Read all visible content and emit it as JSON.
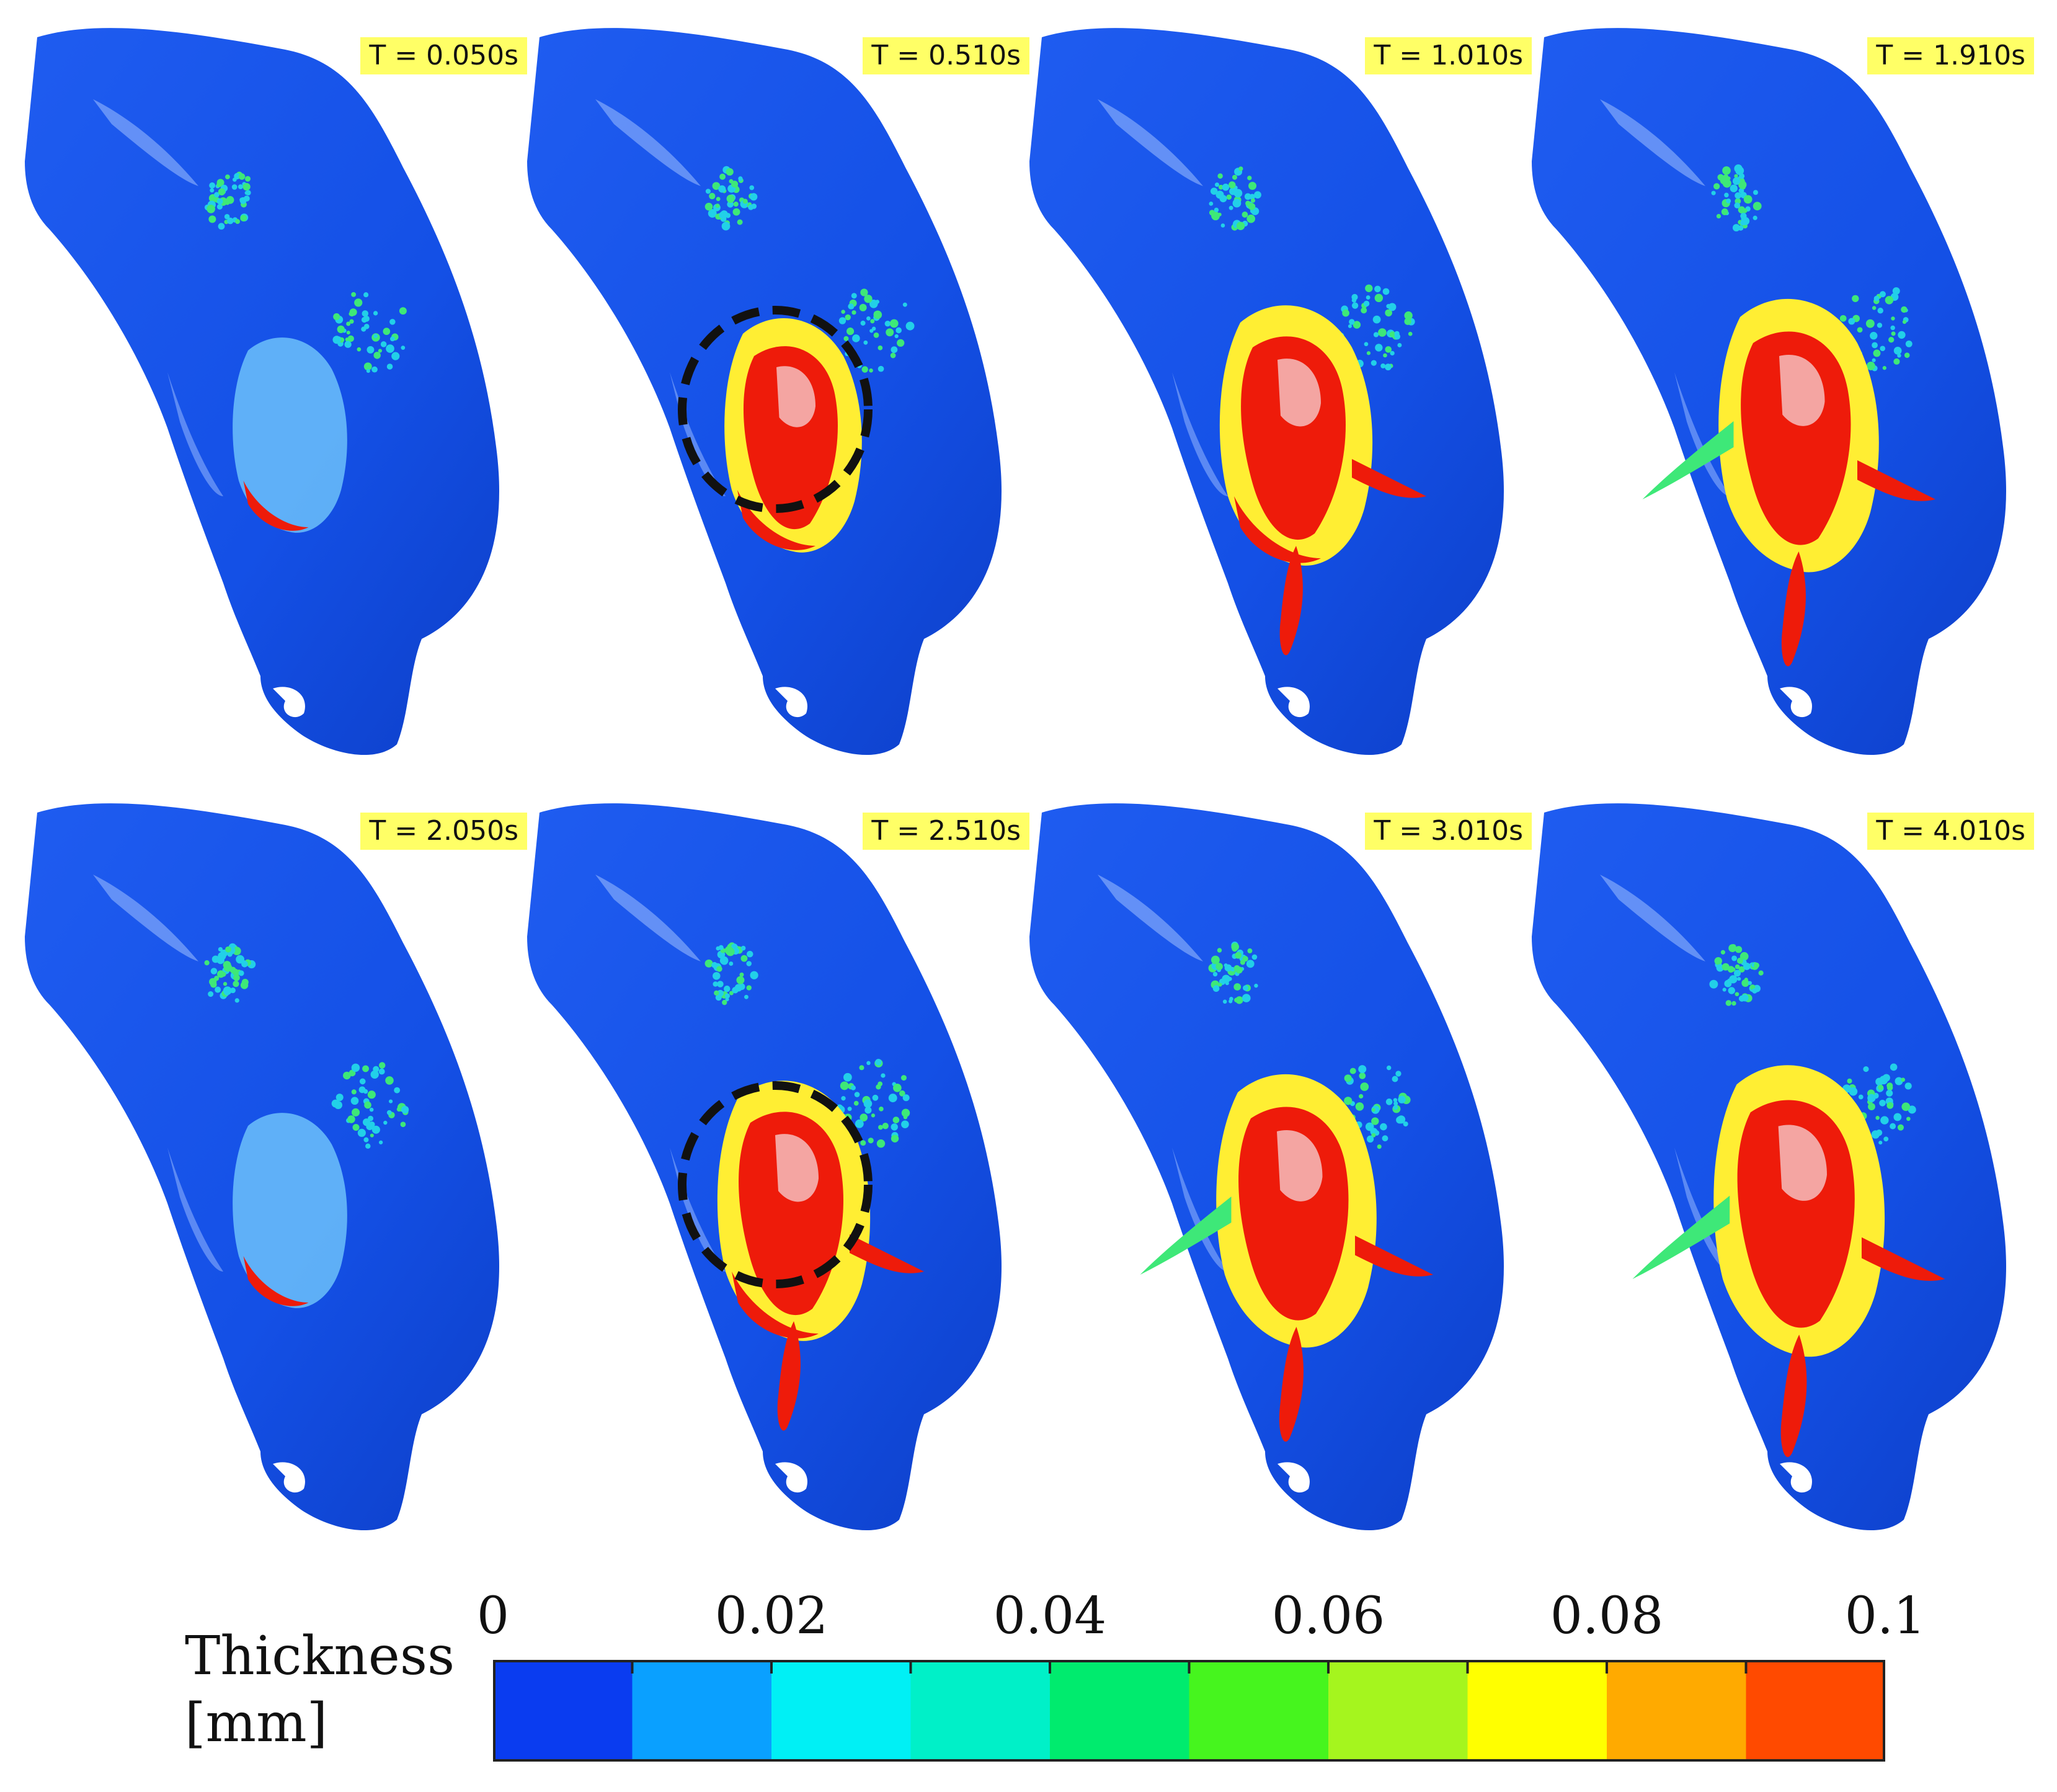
{
  "panels": [
    {
      "label": "T = 0.050s",
      "stage": 0,
      "ring": false
    },
    {
      "label": "T = 0.510s",
      "stage": 1,
      "ring": true
    },
    {
      "label": "T = 1.010s",
      "stage": 2,
      "ring": false
    },
    {
      "label": "T = 1.910s",
      "stage": 3,
      "ring": false
    },
    {
      "label": "T = 2.050s",
      "stage": 0,
      "ring": false
    },
    {
      "label": "T = 2.510s",
      "stage": 2,
      "ring": true
    },
    {
      "label": "T = 3.010s",
      "stage": 3,
      "ring": false
    },
    {
      "label": "T = 4.010s",
      "stage": 4,
      "ring": false
    }
  ],
  "legend": {
    "title_line1": "Thickness",
    "title_line2": "[mm]",
    "tick_labels": [
      "0",
      "0.02",
      "0.04",
      "0.06",
      "0.08",
      "0.1"
    ],
    "color_bins": [
      "#0a3cf0",
      "#0aa0ff",
      "#00f0f5",
      "#00f0c8",
      "#00eb6e",
      "#46f51e",
      "#a5f51e",
      "#ffff00",
      "#ffaa00",
      "#ff4a00"
    ]
  },
  "colors": {
    "surface": "#1450e6",
    "surface_highlight": "#9fc0ff",
    "film_thick": "#ee1b0a",
    "film_mid": "#ffee33",
    "film_thin": "#3ee878",
    "label_bg": "#ffff66",
    "ring": "#111111"
  }
}
